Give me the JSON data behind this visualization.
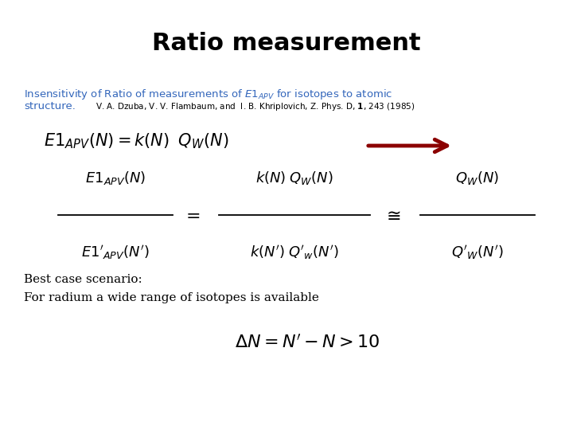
{
  "title": "Ratio measurement",
  "title_fontsize": 22,
  "title_fontweight": "bold",
  "title_color": "#000000",
  "bg_color": "#ffffff",
  "subtitle_color": "#3366bb",
  "text_color": "#000000",
  "arrow_color": "#8b0000",
  "subtitle_line1": "Insensitivity of Ratio of measurements of $E1_{APV}$ for isotopes to atomic",
  "subtitle_line2": "structure.",
  "citation": "V. A. Dzuba, V. V. Flambaum, and  I. B. Khriplovich, Z. Phys. D, $\\mathbf{1}$, 243 (1985)",
  "best_case": "Best case scenario:",
  "for_radium": "For radium a wide range of isotopes is available"
}
